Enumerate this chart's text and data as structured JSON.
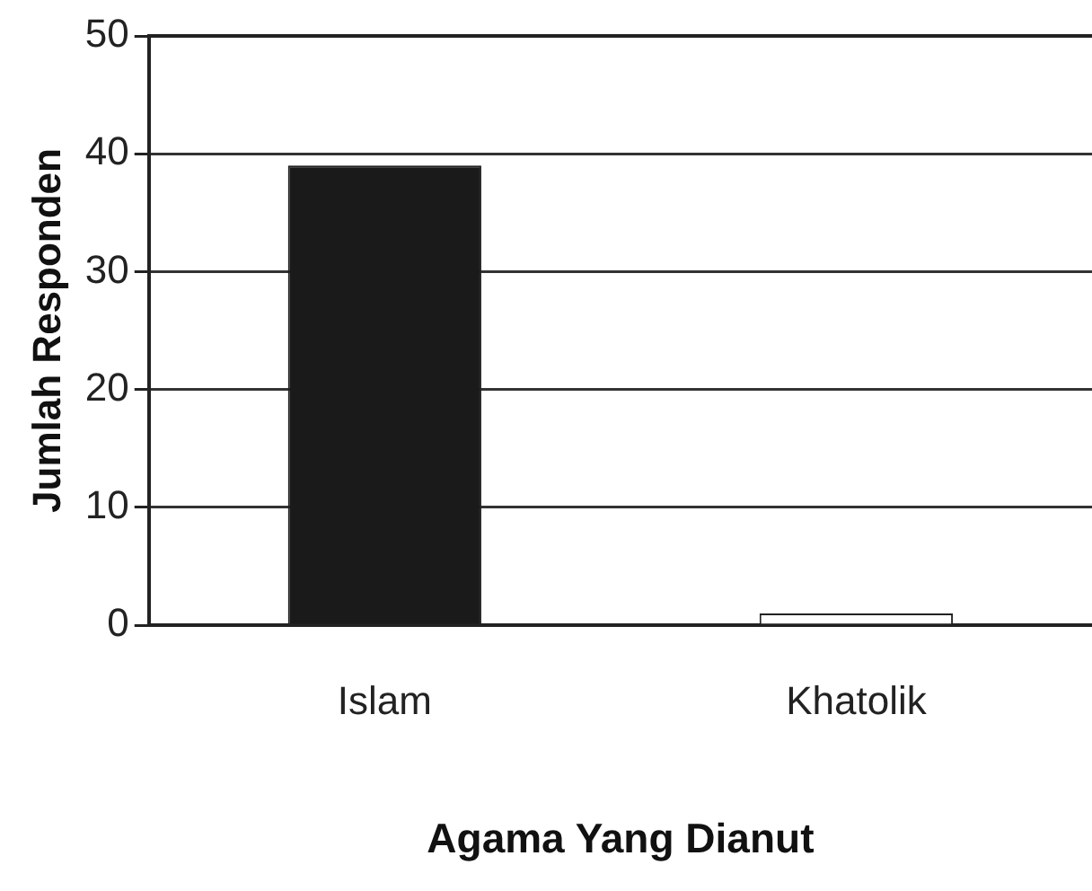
{
  "chart_data": {
    "type": "bar",
    "xlabel": "Agama Yang Dianut",
    "ylabel": "Jumlah Responden",
    "categories": [
      "Islam",
      "Khatolik"
    ],
    "values": [
      39,
      1
    ],
    "colors": [
      "#1a1a1a",
      "#ffffff"
    ],
    "ylim": [
      0,
      50
    ],
    "yticks": [
      0,
      10,
      20,
      30,
      40,
      50
    ],
    "grid": "y",
    "legend": false
  }
}
